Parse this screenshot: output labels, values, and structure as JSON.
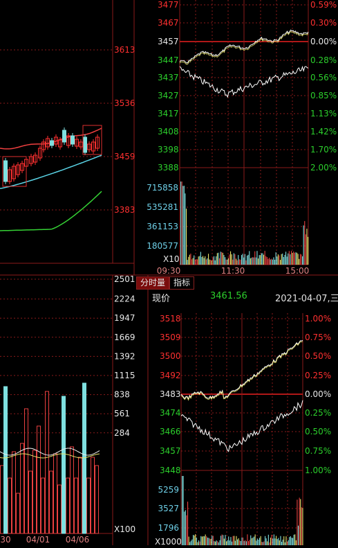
{
  "colors": {
    "up": "#ff3030",
    "down": "#2ccf2c",
    "neutral": "#e8e8e8",
    "volume": "#7fe0e0",
    "grid": "#8b1a1a",
    "white_line": "#ffffff",
    "yellow_line": "#e8e36a",
    "cyan": "#5ad4e6"
  },
  "kline": {
    "price_labels": [
      "3613",
      "3536",
      "3459",
      "3383"
    ],
    "volume_labels": [
      "2501",
      "2224",
      "1947",
      "1669",
      "1392",
      "1115",
      "838",
      "561",
      "284"
    ],
    "volume_unit": "X100",
    "date_labels": [
      "30",
      "04/01",
      "04/06"
    ]
  },
  "intraday_top": {
    "price_labels": [
      "3477",
      "3467",
      "3457",
      "3447",
      "3437",
      "3427",
      "3417",
      "3408",
      "3398",
      "3388"
    ],
    "pct_labels": [
      "0.59%",
      "0.30%",
      "0.00%",
      "0.28%",
      "0.56%",
      "0.85%",
      "1.13%",
      "1.42%",
      "1.70%",
      "2.00%"
    ],
    "volume_labels": [
      "715858",
      "535281",
      "361153",
      "180577"
    ],
    "volume_unit": "X10",
    "time_labels": [
      "09:30",
      "11:30",
      "15:00"
    ]
  },
  "tabs": {
    "tab1": "分时量",
    "tab2": "指标"
  },
  "info_bar": {
    "label": "现价",
    "price": "3461.56",
    "date": "2021-04-07,三"
  },
  "intraday_bottom": {
    "price_labels": [
      "3518",
      "3509",
      "3500",
      "3492",
      "3483",
      "3474",
      "3466",
      "3457",
      "3448"
    ],
    "pct_labels": [
      "1.00%",
      "0.75%",
      "0.50%",
      "0.25%",
      "0.00%",
      "0.25%",
      "0.50%",
      "0.75%",
      "1.00%"
    ],
    "volume_labels": [
      "5259",
      "3527",
      "1796"
    ],
    "volume_unit": "X1000"
  }
}
